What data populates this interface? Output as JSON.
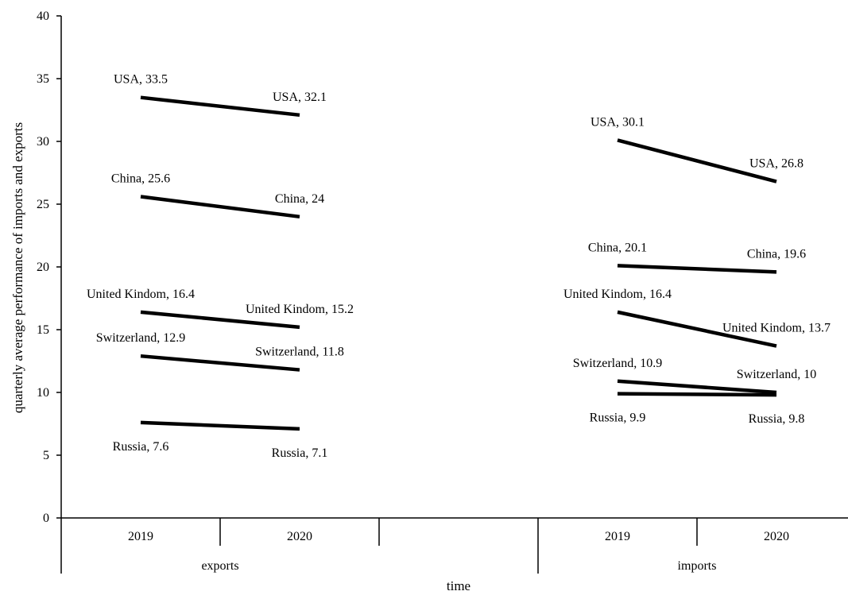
{
  "chart_data": {
    "type": "line",
    "title": "",
    "xlabel": "time",
    "ylabel": "quarterly average performance of imports and exports",
    "ylim": [
      0,
      40
    ],
    "yticks": [
      0,
      5,
      10,
      15,
      20,
      25,
      30,
      35,
      40
    ],
    "grid": false,
    "legend": "none",
    "groups": [
      {
        "name": "exports",
        "categories": [
          "2019",
          "2020"
        ],
        "series": [
          {
            "name": "USA",
            "values": [
              33.5,
              32.1
            ],
            "labels": [
              "USA, 33.5",
              "USA, 32.1"
            ]
          },
          {
            "name": "China",
            "values": [
              25.6,
              24
            ],
            "labels": [
              "China, 25.6",
              "China, 24"
            ]
          },
          {
            "name": "United Kindom",
            "values": [
              16.4,
              15.2
            ],
            "labels": [
              "United Kindom, 16.4",
              "United Kindom, 15.2"
            ]
          },
          {
            "name": "Switzerland",
            "values": [
              12.9,
              11.8
            ],
            "labels": [
              "Switzerland, 12.9",
              "Switzerland, 11.8"
            ]
          },
          {
            "name": "Russia",
            "values": [
              7.6,
              7.1
            ],
            "labels": [
              "Russia, 7.6",
              "Russia, 7.1"
            ]
          }
        ]
      },
      {
        "name": "imports",
        "categories": [
          "2019",
          "2020"
        ],
        "series": [
          {
            "name": "USA",
            "values": [
              30.1,
              26.8
            ],
            "labels": [
              "USA, 30.1",
              "USA, 26.8"
            ]
          },
          {
            "name": "China",
            "values": [
              20.1,
              19.6
            ],
            "labels": [
              "China, 20.1",
              "China, 19.6"
            ]
          },
          {
            "name": "United Kindom",
            "values": [
              16.4,
              13.7
            ],
            "labels": [
              "United Kindom, 16.4",
              "United Kindom, 13.7"
            ]
          },
          {
            "name": "Switzerland",
            "values": [
              10.9,
              10
            ],
            "labels": [
              "Switzerland, 10.9",
              "Switzerland, 10"
            ]
          },
          {
            "name": "Russia",
            "values": [
              9.9,
              9.8
            ],
            "labels": [
              "Russia, 9.9",
              "Russia, 9.8"
            ]
          }
        ]
      }
    ],
    "colors": {
      "line": "#000000",
      "axis": "#000000"
    }
  }
}
